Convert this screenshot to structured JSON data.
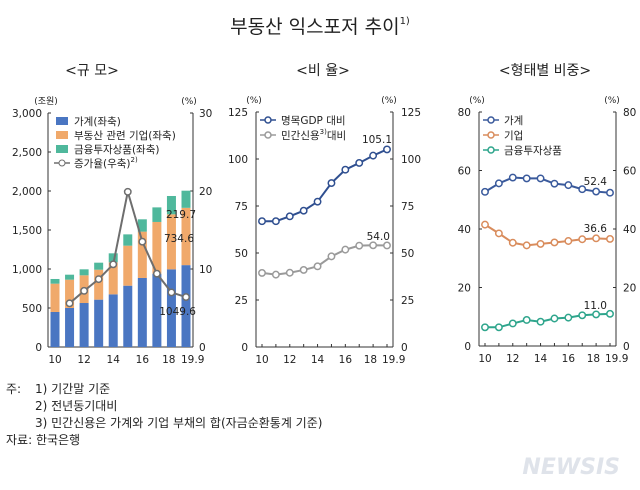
{
  "title": "부동산 익스포저 추이",
  "title_sup": "1)",
  "footnotes": {
    "label": "주:",
    "n1": "1) 기간말 기준",
    "n2": "2) 전년동기대비",
    "n3": "3) 민간신용은 가계와 기업 부채의 합(자금순환통계 기준)",
    "source": "자료: 한국은행"
  },
  "watermark": "NEWSIS",
  "chart_data": [
    {
      "type": "bar",
      "subtitle": "<규 모>",
      "stacked": true,
      "categories": [
        "10",
        "11",
        "12",
        "13",
        "14",
        "15",
        "16",
        "17",
        "18",
        "19.9"
      ],
      "x_tick_labels": [
        "10",
        "",
        "12",
        "",
        "14",
        "",
        "16",
        "",
        "18",
        "19.9"
      ],
      "left_unit": "(조원)",
      "right_unit": "(%)",
      "ylim": [
        0,
        3000
      ],
      "yticks": [
        "0",
        "500",
        "1,000",
        "1,500",
        "2,000",
        "2,500",
        "3,000"
      ],
      "y2lim": [
        0,
        30
      ],
      "y2ticks": [
        "0",
        "10",
        "20",
        "30"
      ],
      "series": [
        {
          "name": "가계(좌축)",
          "color": "#4a76c2",
          "values": [
            449,
            500,
            564,
            607,
            675,
            786,
            885,
            940,
            996,
            1049.6
          ]
        },
        {
          "name": "부동산 관련 기업(좌축)",
          "color": "#f0a96b",
          "values": [
            363,
            363,
            355,
            384,
            410,
            513,
            594,
            663,
            705,
            734.6
          ]
        },
        {
          "name": "금융투자상품(좌축)",
          "color": "#4fb89c",
          "values": [
            60,
            64,
            77,
            90,
            116,
            145,
            158,
            187,
            235,
            219.7
          ]
        },
        {
          "name": "증가율(우축)",
          "name_sup": "2)",
          "type": "line",
          "axis": "right",
          "color": "#6e6e6e",
          "values": [
            null,
            5.6,
            7.2,
            8.7,
            10.6,
            19.9,
            13.5,
            9.4,
            7.0,
            6.4
          ]
        }
      ],
      "data_labels": [
        "219.7",
        "734.6",
        "1049.6"
      ]
    },
    {
      "type": "line",
      "subtitle": "<비 율>",
      "categories": [
        "10",
        "11",
        "12",
        "13",
        "14",
        "15",
        "16",
        "17",
        "18",
        "19.9"
      ],
      "x_tick_labels": [
        "10",
        "",
        "12",
        "",
        "14",
        "",
        "16",
        "",
        "18",
        "19.9"
      ],
      "left_unit": "(%)",
      "right_unit": "(%)",
      "ylim": [
        0,
        125
      ],
      "yticks": [
        "0",
        "25",
        "50",
        "75",
        "100",
        "125"
      ],
      "y2ticks": [
        "0",
        "25",
        "50",
        "75",
        "100",
        "125"
      ],
      "series": [
        {
          "name": "명목GDP 대비",
          "color": "#2f4f90",
          "values": [
            66.9,
            66.9,
            69.5,
            72.5,
            77.3,
            87.2,
            94.3,
            97.9,
            101.8,
            105.1
          ]
        },
        {
          "name": "민간신용",
          "name_sup": "3)",
          "name_tail": "대비",
          "color": "#9a9a9a",
          "values": [
            39.4,
            38.5,
            39.5,
            41.0,
            42.9,
            48.2,
            51.8,
            53.9,
            54.1,
            54.0
          ]
        }
      ],
      "data_labels": [
        "105.1",
        "54.0"
      ]
    },
    {
      "type": "line",
      "subtitle": "<형태별 비중>",
      "categories": [
        "10",
        "11",
        "12",
        "13",
        "14",
        "15",
        "16",
        "17",
        "18",
        "19.9"
      ],
      "x_tick_labels": [
        "10",
        "",
        "12",
        "",
        "14",
        "",
        "16",
        "",
        "18",
        "19.9"
      ],
      "left_unit": "(%)",
      "right_unit": "(%)",
      "ylim": [
        0,
        80
      ],
      "yticks": [
        "0",
        "20",
        "40",
        "60",
        "80"
      ],
      "y2ticks": [
        "0",
        "20",
        "40",
        "60",
        "80"
      ],
      "series": [
        {
          "name": "가계",
          "color": "#3a5a9c",
          "values": [
            52.7,
            55.6,
            57.6,
            57.3,
            57.3,
            55.5,
            55.0,
            53.6,
            52.8,
            52.4
          ]
        },
        {
          "name": "기업",
          "color": "#d98c5c",
          "values": [
            41.5,
            38.5,
            35.3,
            34.4,
            34.9,
            35.4,
            35.9,
            36.5,
            36.8,
            36.6
          ]
        },
        {
          "name": "금융투자상품",
          "color": "#2ea58c",
          "values": [
            6.4,
            6.4,
            7.7,
            8.9,
            8.3,
            9.4,
            9.7,
            10.5,
            10.8,
            11.0
          ]
        }
      ],
      "data_labels": [
        "52.4",
        "36.6",
        "11.0"
      ]
    }
  ]
}
